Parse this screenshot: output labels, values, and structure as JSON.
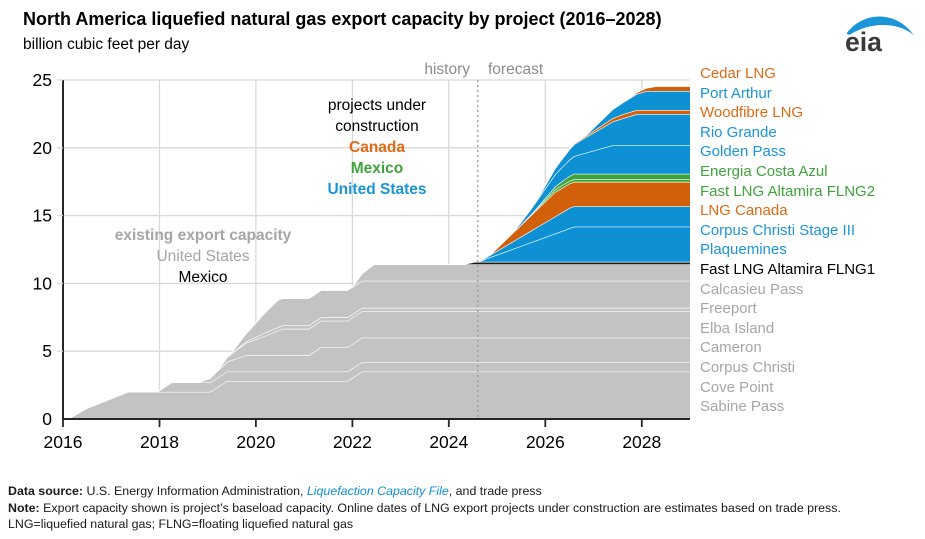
{
  "header": {
    "title": "North America liquefied natural gas export capacity by project (2016–2028)",
    "subtitle": "billion cubic feet per day",
    "logo_text": "eia"
  },
  "colors": {
    "us_blue": "#0d90d4",
    "canada_orange": "#d2600a",
    "mexico_green": "#3fa33c",
    "flng1_black": "#1a1a1a",
    "existing_gray": "#c3c3c3",
    "legend_text_blue": "#1b95d8",
    "legend_text_orange": "#e06a14",
    "legend_text_green": "#3fa33c",
    "legend_text_gray": "#a6a6a6",
    "annotation_gray": "#a6a6a6",
    "history_forecast_gray": "#8c8c8c",
    "grid": "#d9d9d9",
    "axis": "#262626",
    "link_blue": "#0f8fd0",
    "divider_white": "#ffffff"
  },
  "annotations": {
    "history": "history",
    "forecast": "forecast",
    "under_construction": "projects under construction",
    "canada": "Canada",
    "mexico": "Mexico",
    "united_states": "United States",
    "existing_title": "existing export capacity",
    "existing_us": "United States",
    "existing_mexico": "Mexico"
  },
  "legend": {
    "items": [
      {
        "label": "Cedar LNG",
        "color": "#e06a14"
      },
      {
        "label": "Port Arthur",
        "color": "#1b95d8"
      },
      {
        "label": "Woodfibre LNG",
        "color": "#e06a14"
      },
      {
        "label": "Rio Grande",
        "color": "#1b95d8"
      },
      {
        "label": "Golden Pass",
        "color": "#1b95d8"
      },
      {
        "label": "Energia Costa Azul",
        "color": "#3fa33c"
      },
      {
        "label": "Fast LNG Altamira FLNG2",
        "color": "#3fa33c"
      },
      {
        "label": "LNG Canada",
        "color": "#e06a14"
      },
      {
        "label": "Corpus Christi Stage III",
        "color": "#1b95d8"
      },
      {
        "label": "Plaquemines",
        "color": "#1b95d8"
      },
      {
        "label": "Fast LNG Altamira FLNG1",
        "color": "#000000"
      },
      {
        "label": "Calcasieu Pass",
        "color": "#a6a6a6"
      },
      {
        "label": "Freeport",
        "color": "#a6a6a6"
      },
      {
        "label": "Elba Island",
        "color": "#a6a6a6"
      },
      {
        "label": "Cameron",
        "color": "#a6a6a6"
      },
      {
        "label": "Corpus Christi",
        "color": "#a6a6a6"
      },
      {
        "label": "Cove Point",
        "color": "#a6a6a6"
      },
      {
        "label": "Sabine Pass",
        "color": "#a6a6a6"
      }
    ]
  },
  "chart_data": {
    "type": "area",
    "stacked": true,
    "title": "North America liquefied natural gas export capacity by project (2016–2028)",
    "ylabel": "billion cubic feet per day",
    "x_range": [
      2016,
      2029
    ],
    "ylim": [
      0,
      25
    ],
    "y_ticks": [
      0,
      5,
      10,
      15,
      20,
      25
    ],
    "x_ticks": [
      2016,
      2018,
      2020,
      2022,
      2024,
      2026,
      2028
    ],
    "forecast_divider_x": 2024.6,
    "legend_position": "right",
    "grid": true,
    "series": [
      {
        "name": "Sabine Pass",
        "group": "existing United States",
        "color": "#c3c3c3",
        "points": [
          [
            2016,
            0
          ],
          [
            2016.1,
            0
          ],
          [
            2016.5,
            0.8
          ],
          [
            2017.0,
            1.5
          ],
          [
            2017.35,
            2.0
          ],
          [
            2019.05,
            2.0
          ],
          [
            2019.4,
            2.8
          ],
          [
            2021.9,
            2.8
          ],
          [
            2022.2,
            3.5
          ],
          [
            2029,
            3.5
          ]
        ]
      },
      {
        "name": "Cove Point",
        "group": "existing United States",
        "color": "#c3c3c3",
        "points": [
          [
            2016,
            0
          ],
          [
            2017.95,
            0
          ],
          [
            2018.25,
            0.7
          ],
          [
            2029,
            0.7
          ]
        ]
      },
      {
        "name": "Corpus Christi",
        "group": "existing United States",
        "color": "#c3c3c3",
        "points": [
          [
            2016,
            0
          ],
          [
            2018.8,
            0
          ],
          [
            2019.3,
            0.6
          ],
          [
            2019.8,
            1.2
          ],
          [
            2021.1,
            1.2
          ],
          [
            2021.35,
            1.8
          ],
          [
            2029,
            1.8
          ]
        ]
      },
      {
        "name": "Cameron",
        "group": "existing United States",
        "color": "#c3c3c3",
        "points": [
          [
            2016,
            0
          ],
          [
            2019.2,
            0
          ],
          [
            2019.6,
            0.65
          ],
          [
            2020.1,
            1.3
          ],
          [
            2020.55,
            1.95
          ],
          [
            2029,
            1.95
          ]
        ]
      },
      {
        "name": "Elba Island",
        "group": "existing United States",
        "color": "#c3c3c3",
        "points": [
          [
            2016,
            0
          ],
          [
            2019.5,
            0
          ],
          [
            2020.2,
            0.25
          ],
          [
            2029,
            0.25
          ]
        ]
      },
      {
        "name": "Freeport",
        "group": "existing United States",
        "color": "#c3c3c3",
        "points": [
          [
            2016,
            0
          ],
          [
            2019.45,
            0
          ],
          [
            2019.85,
            0.7
          ],
          [
            2020.15,
            1.4
          ],
          [
            2020.45,
            2.0
          ],
          [
            2029,
            2.0
          ]
        ]
      },
      {
        "name": "Calcasieu Pass",
        "group": "existing United States",
        "color": "#c3c3c3",
        "points": [
          [
            2016,
            0
          ],
          [
            2022.0,
            0
          ],
          [
            2022.45,
            1.2
          ],
          [
            2029,
            1.2
          ]
        ]
      },
      {
        "name": "Fast LNG Altamira FLNG1",
        "group": "existing Mexico",
        "color": "#1a1a1a",
        "points": [
          [
            2016,
            0
          ],
          [
            2024.3,
            0
          ],
          [
            2024.55,
            0.19
          ],
          [
            2029,
            0.19
          ]
        ]
      },
      {
        "name": "Plaquemines",
        "group": "under construction United States",
        "color": "#0d90d4",
        "points": [
          [
            2016,
            0
          ],
          [
            2024.6,
            0
          ],
          [
            2026.6,
            2.6
          ],
          [
            2029,
            2.6
          ]
        ]
      },
      {
        "name": "Corpus Christi Stage III",
        "group": "under construction United States",
        "color": "#0d90d4",
        "points": [
          [
            2016,
            0
          ],
          [
            2024.65,
            0
          ],
          [
            2026.5,
            1.5
          ],
          [
            2029,
            1.5
          ]
        ]
      },
      {
        "name": "LNG Canada",
        "group": "under construction Canada",
        "color": "#d2600a",
        "points": [
          [
            2016,
            0
          ],
          [
            2024.85,
            0
          ],
          [
            2026.2,
            1.8
          ],
          [
            2029,
            1.8
          ]
        ]
      },
      {
        "name": "Fast LNG Altamira FLNG2",
        "group": "under construction Mexico",
        "color": "#3fa33c",
        "points": [
          [
            2016,
            0
          ],
          [
            2025.4,
            0
          ],
          [
            2026.3,
            0.2
          ],
          [
            2029,
            0.2
          ]
        ]
      },
      {
        "name": "Energia Costa Azul",
        "group": "under construction Mexico",
        "color": "#3fa33c",
        "points": [
          [
            2016,
            0
          ],
          [
            2025.7,
            0
          ],
          [
            2026.6,
            0.4
          ],
          [
            2029,
            0.4
          ]
        ]
      },
      {
        "name": "Golden Pass",
        "group": "under construction United States",
        "color": "#0d90d4",
        "points": [
          [
            2016,
            0
          ],
          [
            2025.3,
            0
          ],
          [
            2027.4,
            2.1
          ],
          [
            2029,
            2.1
          ]
        ]
      },
      {
        "name": "Rio Grande",
        "group": "under construction United States",
        "color": "#0d90d4",
        "points": [
          [
            2016,
            0
          ],
          [
            2025.8,
            0
          ],
          [
            2027.9,
            2.3
          ],
          [
            2029,
            2.3
          ]
        ]
      },
      {
        "name": "Woodfibre LNG",
        "group": "under construction Canada",
        "color": "#d2600a",
        "points": [
          [
            2016,
            0
          ],
          [
            2026.4,
            0
          ],
          [
            2027.6,
            0.3
          ],
          [
            2029,
            0.3
          ]
        ]
      },
      {
        "name": "Port Arthur",
        "group": "under construction United States",
        "color": "#0d90d4",
        "points": [
          [
            2016,
            0
          ],
          [
            2026.8,
            0
          ],
          [
            2028.1,
            1.4
          ],
          [
            2029,
            1.4
          ]
        ]
      },
      {
        "name": "Cedar LNG",
        "group": "under construction Canada",
        "color": "#d2600a",
        "points": [
          [
            2016,
            0
          ],
          [
            2027.7,
            0
          ],
          [
            2028.3,
            0.35
          ],
          [
            2029,
            0.35
          ]
        ]
      }
    ]
  },
  "footer": {
    "datasource_label": "Data source:",
    "datasource_text": " U.S. Energy Information Administration, ",
    "datasource_link": "Liquefaction Capacity File",
    "datasource_suffix": ", and trade press",
    "note_label": "Note:",
    "note_text": " Export capacity shown is project’s baseload capacity. Online dates of LNG export projects under construction are estimates based on trade press.",
    "abbreviations": "LNG=liquefied natural gas; FLNG=floating liquefied natural gas"
  }
}
